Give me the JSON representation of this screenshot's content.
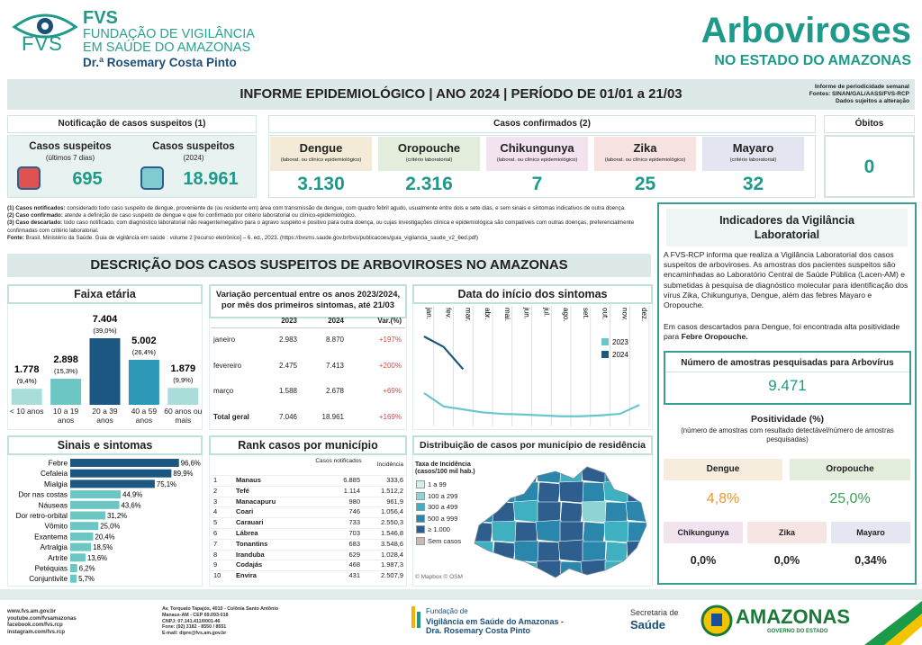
{
  "header": {
    "logo": {
      "acronym": "FVS",
      "lines": [
        "FUNDAÇÃO DE VIGILÂNCIA",
        "EM SAÚDE DO AMAZONAS"
      ],
      "director": "Dr.ª Rosemary Costa Pinto"
    },
    "title": "Arboviroses",
    "subtitle": "NO ESTADO DO AMAZONAS"
  },
  "banner": {
    "title": "INFORME EPIDEMIOLÓGICO | ANO 2024 | PERÍODO DE 01/01 a 21/03",
    "notes": [
      "Informe de periodicidade semanal",
      "Fontes: SINAN/GAL/AASS/FVS-RCP",
      "Dados sujeitos a alteração"
    ]
  },
  "suspected": {
    "title": "Notificação de casos suspeitos (1)",
    "cards": [
      {
        "label": "Casos suspeitos",
        "sublabel": "(últimos 7 dias)",
        "value": "695"
      },
      {
        "label": "Casos suspeitos",
        "sublabel": "(2024)",
        "value": "18.961"
      }
    ]
  },
  "confirmed": {
    "title": "Casos confirmados (2)",
    "cards": [
      {
        "label": "Dengue",
        "criterion": "(laborat. ou clínico epidemiológico)",
        "value": "3.130",
        "color": "#f3ead8"
      },
      {
        "label": "Oropouche",
        "criterion": "(critério laboratorial)",
        "value": "2.316",
        "color": "#e2eedb"
      },
      {
        "label": "Chikungunya",
        "criterion": "(laborat. ou clínico epidemiológico)",
        "value": "7",
        "color": "#f2e3ee"
      },
      {
        "label": "Zika",
        "criterion": "(laborat. ou clínico epidemiológico)",
        "value": "25",
        "color": "#f5e2e1"
      },
      {
        "label": "Mayaro",
        "criterion": "(critério laboratorial)",
        "value": "32",
        "color": "#e3e6f1"
      }
    ]
  },
  "deaths": {
    "title": "Óbitos",
    "value": "0"
  },
  "footnotes": [
    {
      "label": "(1) Casos notificados:",
      "text": "considerado todo caso suspeito de dengue, proveniente de (ou residente em) área com transmissão de dengue, com quadro febril agudo, usualmente entre dois e sete dias, e sem sinais e sintomas indicativos de outra doença."
    },
    {
      "label": "(2) Caso confirmado:",
      "text": "atende a definição de caso suspeito de dengue e que foi confirmado por critério laboratorial ou clínico-epidemiológico."
    },
    {
      "label": "(3) Caso descartado:",
      "text": "todo caso notificado, com diagnóstico laboratorial não reagente/negativo para o agravo suspeito e positivo para outra doença, ou cujas investigações clínica e epidemiológica são compatíveis com outras doenças, preferencialmente confirmadas com critério laboratorial."
    },
    {
      "label": "Fonte:",
      "text": "Brasil. Ministério da Saúde. Guia de vigilância em saúde : volume 2 [recurso eletrônico] – 6. ed., 2023. (https://bvsms.saude.gov.br/bvs/publicacoes/guia_vigilancia_saude_v2_6ed.pdf)"
    }
  ],
  "section_title": "DESCRIÇÃO DOS CASOS SUSPEITOS DE ARBOVIROSES NO AMAZONAS",
  "variation_table": {
    "title": "Variação percentual entre os anos 2023/2024, por mês dos primeiros sintomas, até 21/03",
    "columns": [
      "2023",
      "2024",
      "Var.(%)"
    ],
    "rows": [
      [
        "janeiro",
        "2.983",
        "8.870",
        "+197%"
      ],
      [
        "fevereiro",
        "2.475",
        "7.413",
        "+200%"
      ],
      [
        "março",
        "1.588",
        "2.678",
        "+69%"
      ],
      [
        "Total geral",
        "7.046",
        "18.961",
        "+169%"
      ]
    ]
  },
  "rank_table": {
    "title": "Rank casos por município",
    "columns": [
      "Casos notificados",
      "Incidência"
    ],
    "rows": [
      [
        "1",
        "Manaus",
        "6.885",
        "333,6"
      ],
      [
        "2",
        "Tefé",
        "1.114",
        "1.512,2"
      ],
      [
        "3",
        "Manacapuru",
        "980",
        "961,9"
      ],
      [
        "4",
        "Coari",
        "746",
        "1.056,4"
      ],
      [
        "5",
        "Carauari",
        "733",
        "2.550,3"
      ],
      [
        "6",
        "Lábrea",
        "703",
        "1.546,8"
      ],
      [
        "7",
        "Tonantins",
        "683",
        "3.548,6"
      ],
      [
        "8",
        "Iranduba",
        "629",
        "1.028,4"
      ],
      [
        "9",
        "Codajás",
        "468",
        "1.987,3"
      ],
      [
        "10",
        "Envira",
        "431",
        "2.507,9"
      ]
    ]
  },
  "map": {
    "title": "Distribuição de casos por município de residência",
    "legend_title": "Taxa de Incidência (casos/100 mil hab.)",
    "legend": [
      {
        "label": "1 a 99",
        "color": "#d2eeed"
      },
      {
        "label": "100 a 299",
        "color": "#8fd4d5"
      },
      {
        "label": "300 a 499",
        "color": "#3fb0c0"
      },
      {
        "label": "500 a 999",
        "color": "#2b86ab"
      },
      {
        "label": "≥ 1.000",
        "color": "#2d5e8e"
      },
      {
        "label": "Sem casos",
        "color": "#c9b9b5"
      }
    ],
    "attribution": "© Mapbox © OSM"
  },
  "lab": {
    "title": "Indicadores da Vigilância Laboratorial",
    "paragraph": "A FVS-RCP informa que realiza a Vigilância Laboratorial dos casos suspeitos de arboviroses. As amostras dos pacientes suspeitos são encaminhadas ao Laboratório Central de Saúde Pública (Lacen-AM) e submetidas à pesquisa de diagnóstico molecular para identificação dos vírus Zika, Chikungunya, Dengue, além das febres Mayaro e Oropouche.",
    "finding": {
      "text": "Em casos descartados para Dengue, foi encontrada alta positividade para",
      "highlight": "Febre Oropouche."
    },
    "samples": {
      "label": "Número de amostras pesquisadas para Arbovírus",
      "value": "9.471"
    },
    "positivity": {
      "title": "Positividade (%)",
      "note": "(número de amostras com resultado detectável/número de amostras pesquisadas)",
      "items": [
        {
          "name": "Dengue",
          "value": "4,8%",
          "color": "#f6edde",
          "value_color": "#f0962c"
        },
        {
          "name": "Oropouche",
          "value": "25,0%",
          "color": "#e2eedb",
          "value_color": "#35a457"
        },
        {
          "name": "Chikungunya",
          "value": "0,0%",
          "color": "#f3e3ef",
          "value_color": "#222222"
        },
        {
          "name": "Zika",
          "value": "0,0%",
          "color": "#f6e5e4",
          "value_color": "#222222"
        },
        {
          "name": "Mayaro",
          "value": "0,34%",
          "color": "#e4e7f2",
          "value_color": "#222222"
        }
      ]
    }
  },
  "footer": {
    "contacts": [
      "www.fvs.am.gov.br",
      "youtube.com/fvsamazonas",
      "facebook.com/fvs.rcp",
      "instagram.com/fvs.rcp"
    ],
    "address": [
      "Av. Torquato Tapajós, 4010 - Colônia Santo Antônio",
      "Manaus-AM - CEP 69.093-018",
      "CNPJ: 07.141.411/0001-46",
      "Fone: (92) 3182 - 8550 / 8551",
      "E-mail: dipre@fvs.am.gov.br"
    ],
    "foundation": [
      "Fundação de",
      "Vigilância em Saúde do Amazonas -",
      "Dra. Rosemary Costa Pinto"
    ],
    "secretaria": [
      "Secretaria de",
      "Saúde"
    ],
    "government": [
      "AMAZONAS",
      "GOVERNO DO ESTADO"
    ]
  },
  "chart_data": [
    {
      "type": "bar",
      "title": "Faixa etária",
      "categories": [
        "< 10 anos",
        "10 a 19 anos",
        "20 a 39 anos",
        "40 a 59 anos",
        "60 anos ou mais"
      ],
      "values": [
        1778,
        2898,
        7404,
        5002,
        1879
      ],
      "value_labels": [
        "1.778",
        "2.898",
        "7.404",
        "5.002",
        "1.879"
      ],
      "share_labels": [
        "(9,4%)",
        "(15,3%)",
        "(39,0%)",
        "(26,4%)",
        "(9,9%)"
      ],
      "colors": [
        "#a9ddda",
        "#6cc6c4",
        "#1b5781",
        "#2d98b7",
        "#a9ddda"
      ]
    },
    {
      "type": "line",
      "title": "Data do início dos sintomas",
      "categories": [
        "jan.",
        "fev.",
        "mar.",
        "abr.",
        "mai.",
        "jun.",
        "jul.",
        "ago.",
        "set.",
        "out.",
        "nov.",
        "dez."
      ],
      "series": [
        {
          "name": "2023",
          "color": "#6ac6cd",
          "values": [
            100,
            55,
            45,
            35,
            30,
            28,
            25,
            22,
            22,
            25,
            30,
            60
          ]
        },
        {
          "name": "2024",
          "color": "#1b5781",
          "values": [
            290,
            255,
            180,
            null,
            null,
            null,
            null,
            null,
            null,
            null,
            null,
            null
          ]
        }
      ]
    },
    {
      "type": "hbar",
      "title": "Sinais e sintomas",
      "categories": [
        "Febre",
        "Cefaleia",
        "Mialgia",
        "Dor nas costas",
        "Náuseas",
        "Dor retro-orbital",
        "Vômito",
        "Exantema",
        "Artralgia",
        "Artrite",
        "Petéquias",
        "Conjuntivite"
      ],
      "values": [
        96.6,
        89.9,
        75.1,
        44.9,
        43.6,
        31.2,
        25.0,
        20.4,
        18.5,
        13.6,
        6.2,
        5.7
      ],
      "value_labels": [
        "96,6%",
        "89,9%",
        "75,1%",
        "44,9%",
        "43,6%",
        "31,2%",
        "25,0%",
        "20,4%",
        "18,5%",
        "13,6%",
        "6,2%",
        "5,7%"
      ],
      "colors": [
        "#1b5781",
        "#1b5781",
        "#1b5781",
        "#6cc6c4",
        "#6cc6c4",
        "#6cc6c4",
        "#6cc6c4",
        "#6cc6c4",
        "#6cc6c4",
        "#6cc6c4",
        "#6cc6c4",
        "#6cc6c4"
      ]
    }
  ]
}
